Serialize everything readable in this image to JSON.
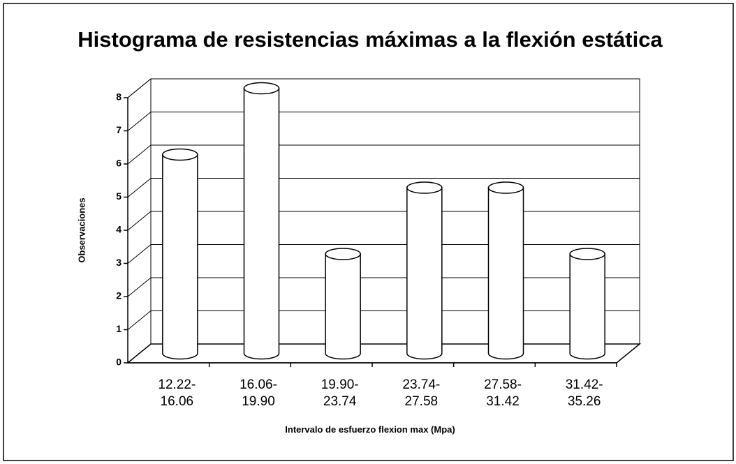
{
  "chart_data": {
    "type": "bar",
    "title": "Histograma de resistencias máximas a la flexión estática",
    "x_label": "Intervalo de esfuerzo flexion max (Mpa)",
    "y_label": "Observaciones",
    "categories": [
      "12.22-16.06",
      "16.06-19.90",
      "19.90-23.74",
      "23.74-27.58",
      "27.58-31.42",
      "31.42-35.26"
    ],
    "values": [
      6,
      8,
      3,
      5,
      5,
      3
    ],
    "color": "#ffffff",
    "ylim": [
      0,
      8
    ],
    "yticks": [
      0,
      1,
      2,
      3,
      4,
      5,
      6,
      7,
      8
    ],
    "grid": true
  }
}
